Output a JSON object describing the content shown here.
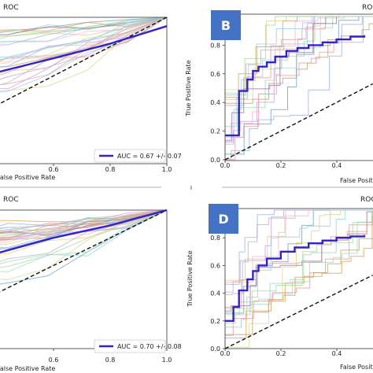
{
  "chart_data": [
    {
      "panel": "A",
      "type": "line",
      "title": "ROC",
      "xlabel": "False Positive Rate",
      "ylabel": "",
      "xlim": [
        0,
        1
      ],
      "ylim": [
        0,
        1
      ],
      "xticks": [
        "0.6",
        "0.8",
        "1.0"
      ],
      "yticks": [],
      "legend": "AUC = 0.67 +/- 0.07",
      "legend_placement": "bottom-right",
      "badge": "",
      "series": [
        {
          "x": [
            0.35,
            0.6,
            0.8,
            1.0
          ],
          "y": [
            0.6,
            0.72,
            0.82,
            0.94
          ]
        }
      ]
    },
    {
      "panel": "B",
      "type": "line",
      "title": "ROC",
      "xlabel": "False Positive Rate",
      "ylabel": "True Positive Rate",
      "xlim": [
        0,
        0.5
      ],
      "ylim": [
        0,
        1
      ],
      "xticks": [
        "0.0",
        "0.2",
        "0.4"
      ],
      "yticks": [
        "0.0",
        "0.2",
        "0.4",
        "0.6",
        "0.8",
        "1.0"
      ],
      "legend": "",
      "legend_placement": "",
      "badge": "B",
      "series": [
        {
          "x": [
            0,
            0.05,
            0.05,
            0.08,
            0.1,
            0.12,
            0.15,
            0.18,
            0.22,
            0.26,
            0.3,
            0.35,
            0.4,
            0.45,
            0.5
          ],
          "y": [
            0.17,
            0.17,
            0.48,
            0.56,
            0.62,
            0.65,
            0.68,
            0.72,
            0.76,
            0.78,
            0.8,
            0.82,
            0.84,
            0.86,
            0.87
          ]
        }
      ]
    },
    {
      "panel": "C",
      "type": "line",
      "title": "ROC",
      "xlabel": "False Positive Rate",
      "ylabel": "",
      "xlim": [
        0,
        1
      ],
      "ylim": [
        0,
        1
      ],
      "xticks": [
        "0.6",
        "0.8",
        "1.0"
      ],
      "yticks": [],
      "legend": "AUC = 0.70 +/- 0.08",
      "legend_placement": "bottom-right",
      "badge": "",
      "series": [
        {
          "x": [
            0.35,
            0.6,
            0.8,
            1.0
          ],
          "y": [
            0.66,
            0.8,
            0.89,
            1.0
          ]
        }
      ]
    },
    {
      "panel": "D",
      "type": "line",
      "title": "ROC",
      "xlabel": "False Positive Rate",
      "ylabel": "True Positive Rate",
      "xlim": [
        0,
        0.5
      ],
      "ylim": [
        0,
        1
      ],
      "xticks": [
        "0.0",
        "0.2",
        "0.4"
      ],
      "yticks": [
        "0.0",
        "0.2",
        "0.4",
        "0.6",
        "0.8",
        "1.0"
      ],
      "legend": "",
      "legend_placement": "",
      "badge": "D",
      "series": [
        {
          "x": [
            0,
            0.02,
            0.03,
            0.05,
            0.08,
            0.1,
            0.12,
            0.15,
            0.2,
            0.25,
            0.3,
            0.35,
            0.4,
            0.45,
            0.5
          ],
          "y": [
            0.2,
            0.2,
            0.3,
            0.42,
            0.5,
            0.56,
            0.6,
            0.65,
            0.7,
            0.73,
            0.76,
            0.78,
            0.8,
            0.81,
            0.82
          ]
        }
      ]
    }
  ]
}
